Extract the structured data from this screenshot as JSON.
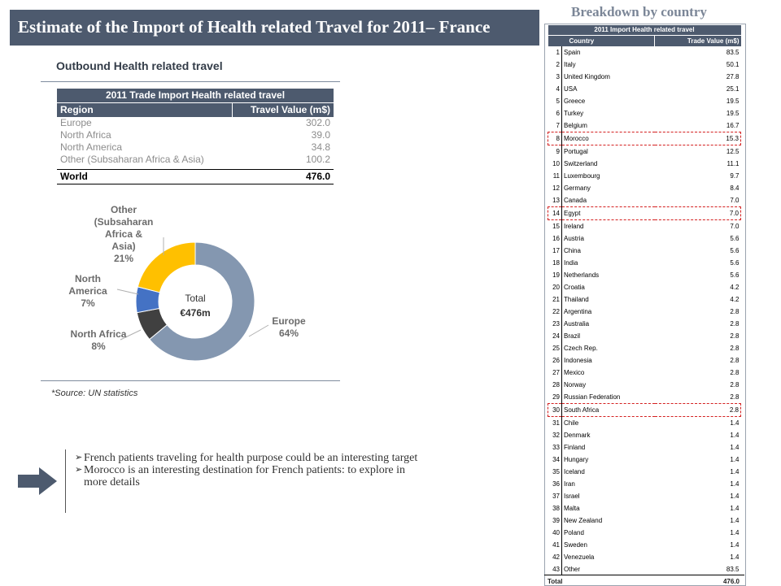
{
  "title": "Estimate of the Import of Health related Travel for  2011– France",
  "section_title": "Outbound Health related travel",
  "region_table": {
    "title": "2011 Trade Import Health related travel",
    "col_region": "Region",
    "col_value": "Travel Value (m$)",
    "rows": [
      {
        "region": "Europe",
        "value": "302.0"
      },
      {
        "region": "North Africa",
        "value": "39.0"
      },
      {
        "region": "North America",
        "value": "34.8"
      },
      {
        "region": "Other (Subsaharan Africa & Asia)",
        "value": "100.2"
      }
    ],
    "total_label": "World",
    "total_value": "476.0"
  },
  "chart_data": {
    "type": "pie",
    "style": "donut",
    "slices": [
      {
        "name": "Europe",
        "value": 64,
        "color": "#8497b0"
      },
      {
        "name": "North Africa",
        "value": 8,
        "color": "#404040"
      },
      {
        "name": "North America",
        "value": 7,
        "color": "#4472c4"
      },
      {
        "name": "Other (Subsaharan Africa & Asia)",
        "value": 21,
        "color": "#ffc000"
      }
    ],
    "labels": {
      "europe": [
        "Europe",
        "64%"
      ],
      "north_africa": [
        "North Africa",
        "8%"
      ],
      "north_america": [
        "North",
        "America",
        "7%"
      ],
      "other": [
        "Other",
        "(Subsaharan",
        "Africa &",
        "Asia)",
        "21%"
      ]
    },
    "center_text": [
      "Total",
      "€476m"
    ]
  },
  "source_note": "*Source: UN statistics",
  "bullets": [
    [
      "French patients traveling for health purpose could be an interesting target"
    ],
    [
      "Morocco is an interesting destination for French patients: to explore in",
      "more details"
    ]
  ],
  "bullet_mark": "➢",
  "side_heading": "Breakdown by country",
  "country_table": {
    "title": "2011 Import Health related travel",
    "col_country": "Country",
    "col_value": "Trade Value (m$)",
    "rows": [
      {
        "rank": "1",
        "country": "Spain",
        "value": "83.5",
        "highlight": false
      },
      {
        "rank": "2",
        "country": "Italy",
        "value": "50.1",
        "highlight": false
      },
      {
        "rank": "3",
        "country": "United Kingdom",
        "value": "27.8",
        "highlight": false
      },
      {
        "rank": "4",
        "country": "USA",
        "value": "25.1",
        "highlight": false
      },
      {
        "rank": "5",
        "country": "Greece",
        "value": "19.5",
        "highlight": false
      },
      {
        "rank": "6",
        "country": "Turkey",
        "value": "19.5",
        "highlight": false
      },
      {
        "rank": "7",
        "country": "Belgium",
        "value": "16.7",
        "highlight": false
      },
      {
        "rank": "8",
        "country": "Morocco",
        "value": "15.3",
        "highlight": true
      },
      {
        "rank": "9",
        "country": "Portugal",
        "value": "12.5",
        "highlight": false
      },
      {
        "rank": "10",
        "country": "Switzerland",
        "value": "11.1",
        "highlight": false
      },
      {
        "rank": "11",
        "country": "Luxembourg",
        "value": "9.7",
        "highlight": false
      },
      {
        "rank": "12",
        "country": "Germany",
        "value": "8.4",
        "highlight": false
      },
      {
        "rank": "13",
        "country": "Canada",
        "value": "7.0",
        "highlight": false
      },
      {
        "rank": "14",
        "country": "Egypt",
        "value": "7.0",
        "highlight": true
      },
      {
        "rank": "15",
        "country": "Ireland",
        "value": "7.0",
        "highlight": false
      },
      {
        "rank": "16",
        "country": "Austria",
        "value": "5.6",
        "highlight": false
      },
      {
        "rank": "17",
        "country": "China",
        "value": "5.6",
        "highlight": false
      },
      {
        "rank": "18",
        "country": "India",
        "value": "5.6",
        "highlight": false
      },
      {
        "rank": "19",
        "country": "Netherlands",
        "value": "5.6",
        "highlight": false
      },
      {
        "rank": "20",
        "country": "Croatia",
        "value": "4.2",
        "highlight": false
      },
      {
        "rank": "21",
        "country": "Thailand",
        "value": "4.2",
        "highlight": false
      },
      {
        "rank": "22",
        "country": "Argentina",
        "value": "2.8",
        "highlight": false
      },
      {
        "rank": "23",
        "country": "Australia",
        "value": "2.8",
        "highlight": false
      },
      {
        "rank": "24",
        "country": "Brazil",
        "value": "2.8",
        "highlight": false
      },
      {
        "rank": "25",
        "country": "Czech Rep.",
        "value": "2.8",
        "highlight": false
      },
      {
        "rank": "26",
        "country": "Indonesia",
        "value": "2.8",
        "highlight": false
      },
      {
        "rank": "27",
        "country": "Mexico",
        "value": "2.8",
        "highlight": false
      },
      {
        "rank": "28",
        "country": "Norway",
        "value": "2.8",
        "highlight": false
      },
      {
        "rank": "29",
        "country": "Russian Federation",
        "value": "2.8",
        "highlight": false
      },
      {
        "rank": "30",
        "country": "South Africa",
        "value": "2.8",
        "highlight": true
      },
      {
        "rank": "31",
        "country": "Chile",
        "value": "1.4",
        "highlight": false
      },
      {
        "rank": "32",
        "country": "Denmark",
        "value": "1.4",
        "highlight": false
      },
      {
        "rank": "33",
        "country": "Finland",
        "value": "1.4",
        "highlight": false
      },
      {
        "rank": "34",
        "country": "Hungary",
        "value": "1.4",
        "highlight": false
      },
      {
        "rank": "35",
        "country": "Iceland",
        "value": "1.4",
        "highlight": false
      },
      {
        "rank": "36",
        "country": "Iran",
        "value": "1.4",
        "highlight": false
      },
      {
        "rank": "37",
        "country": "Israel",
        "value": "1.4",
        "highlight": false
      },
      {
        "rank": "38",
        "country": "Malta",
        "value": "1.4",
        "highlight": false
      },
      {
        "rank": "39",
        "country": "New Zealand",
        "value": "1.4",
        "highlight": false
      },
      {
        "rank": "40",
        "country": "Poland",
        "value": "1.4",
        "highlight": false
      },
      {
        "rank": "41",
        "country": "Sweden",
        "value": "1.4",
        "highlight": false
      },
      {
        "rank": "42",
        "country": "Venezuela",
        "value": "1.4",
        "highlight": false
      },
      {
        "rank": "43",
        "country": "Other",
        "value": "83.5",
        "highlight": false
      }
    ],
    "total_label": "Total",
    "total_value": "476.0"
  },
  "colors": {
    "header_bg": "#4d5a6e",
    "highlight": "#d42020",
    "rule": "#7f8c9e"
  },
  "icons": {
    "arrow": "right-arrow-icon"
  }
}
